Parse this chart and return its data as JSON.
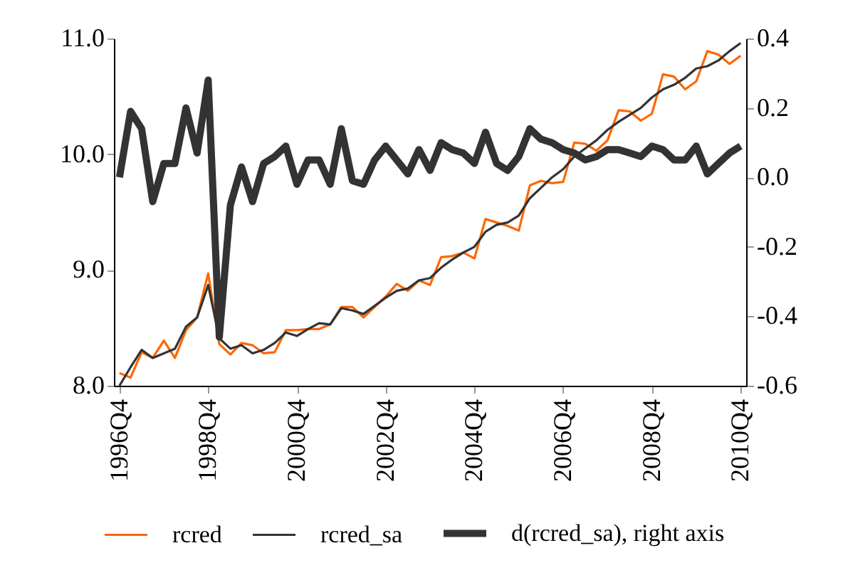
{
  "chart_data": {
    "type": "line",
    "categories": [
      "1996Q4",
      null,
      null,
      null,
      null,
      null,
      null,
      null,
      "1998Q4",
      null,
      null,
      null,
      null,
      null,
      null,
      null,
      "2000Q4",
      null,
      null,
      null,
      null,
      null,
      null,
      null,
      "2002Q4",
      null,
      null,
      null,
      null,
      null,
      null,
      null,
      "2004Q4",
      null,
      null,
      null,
      null,
      null,
      null,
      null,
      "2006Q4",
      null,
      null,
      null,
      null,
      null,
      null,
      null,
      "2008Q4",
      null,
      null,
      null,
      null,
      null,
      null,
      null,
      "2010Q4"
    ],
    "series": [
      {
        "name": "rcred",
        "color": "#ff6600",
        "values": [
          8.11,
          8.07,
          8.29,
          8.24,
          8.39,
          8.24,
          8.48,
          8.59,
          8.97,
          8.36,
          8.27,
          8.37,
          8.35,
          8.28,
          8.29,
          8.48,
          8.48,
          8.49,
          8.49,
          8.53,
          8.68,
          8.68,
          8.59,
          8.68,
          8.77,
          8.88,
          8.82,
          8.91,
          8.87,
          9.11,
          9.12,
          9.15,
          9.1,
          9.44,
          9.41,
          9.38,
          9.34,
          9.73,
          9.77,
          9.75,
          9.76,
          10.1,
          10.09,
          10.03,
          10.12,
          10.38,
          10.37,
          10.29,
          10.35,
          10.69,
          10.67,
          10.56,
          10.63,
          10.89,
          10.86,
          10.78,
          10.85
        ]
      },
      {
        "name": "rcred_sa",
        "color": "#333333",
        "values": [
          8.0,
          8.16,
          8.31,
          8.24,
          8.28,
          8.32,
          8.51,
          8.59,
          8.87,
          8.41,
          8.32,
          8.35,
          8.28,
          8.31,
          8.37,
          8.46,
          8.43,
          8.49,
          8.54,
          8.53,
          8.67,
          8.65,
          8.62,
          8.69,
          8.76,
          8.82,
          8.84,
          8.91,
          8.93,
          9.02,
          9.09,
          9.15,
          9.2,
          9.33,
          9.39,
          9.41,
          9.47,
          9.62,
          9.71,
          9.8,
          9.87,
          9.98,
          10.05,
          10.12,
          10.21,
          10.28,
          10.34,
          10.4,
          10.49,
          10.56,
          10.6,
          10.66,
          10.74,
          10.76,
          10.81,
          10.89,
          10.96
        ]
      },
      {
        "name": "d(rcred_sa), right axis",
        "color": "#333333",
        "axis": "y2",
        "values": [
          0.0,
          0.19,
          0.14,
          -0.07,
          0.04,
          0.04,
          0.2,
          0.07,
          0.28,
          -0.46,
          -0.08,
          0.03,
          -0.07,
          0.04,
          0.06,
          0.09,
          -0.02,
          0.05,
          0.05,
          -0.02,
          0.14,
          -0.01,
          -0.02,
          0.05,
          0.09,
          0.05,
          0.01,
          0.08,
          0.02,
          0.1,
          0.08,
          0.07,
          0.04,
          0.13,
          0.04,
          0.02,
          0.06,
          0.14,
          0.11,
          0.1,
          0.08,
          0.07,
          0.05,
          0.06,
          0.08,
          0.08,
          0.07,
          0.06,
          0.09,
          0.08,
          0.05,
          0.05,
          0.09,
          0.01,
          0.04,
          0.07,
          0.09
        ]
      }
    ],
    "ylim": [
      8,
      11
    ],
    "yticks": [
      {
        "value": 8,
        "label": "8.0"
      },
      {
        "value": 9,
        "label": "9.0"
      },
      {
        "value": 10,
        "label": "10.0"
      },
      {
        "value": 11,
        "label": "11.0"
      }
    ],
    "y2lim": [
      -0.6,
      0.4
    ],
    "y2ticks": [
      -0.6,
      -0.4,
      -0.2,
      {
        "value": 0,
        "label": "0.0"
      },
      0.2,
      0.4
    ],
    "grid": false,
    "legend": "bottom",
    "marker": "none",
    "line_style": "solid"
  }
}
